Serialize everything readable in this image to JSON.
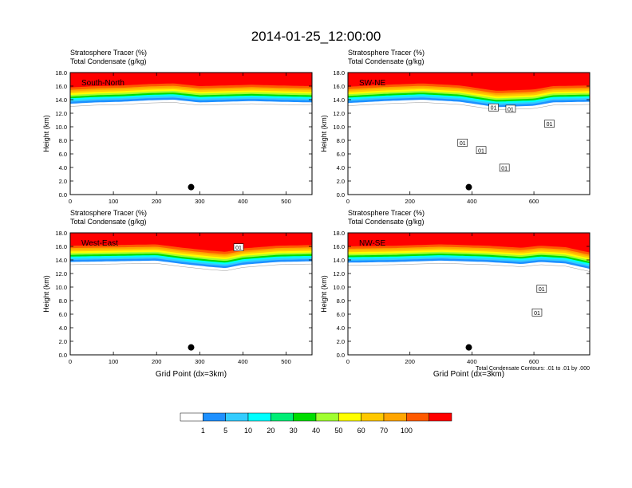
{
  "figure_title": "2014-01-25_12:00:00",
  "colorbar": {
    "labels": [
      "1",
      "5",
      "10",
      "20",
      "30",
      "40",
      "50",
      "60",
      "70",
      "100"
    ],
    "colors": [
      "#ffffff",
      "#1e90ff",
      "#33ccff",
      "#00ffff",
      "#00ee76",
      "#00dd00",
      "#a0ff30",
      "#ffff00",
      "#ffc800",
      "#ffa500",
      "#ff5a00",
      "#ff0000"
    ]
  },
  "chart_data": [
    {
      "type": "heatmap",
      "label": "South-North",
      "title_line1": "Stratosphere Tracer   (%)",
      "title_line2": "Total Condensate   (g/kg)",
      "ylabel": "Height (km)",
      "xlabel": "",
      "xlim": [
        0,
        560
      ],
      "ylim": [
        0,
        18
      ],
      "xticks": [
        "0",
        "100",
        "200",
        "300",
        "400",
        "500"
      ],
      "yticks": [
        "0.0",
        "2.0",
        "4.0",
        "6.0",
        "8.0",
        "10.0",
        "12.0",
        "14.0",
        "16.0",
        "18.0"
      ],
      "marker": {
        "x": 280,
        "y": 1.1
      },
      "tropopause": [
        [
          0,
          14.3
        ],
        [
          60,
          14.5
        ],
        [
          120,
          14.6
        ],
        [
          180,
          14.8
        ],
        [
          240,
          14.9
        ],
        [
          300,
          14.5
        ],
        [
          360,
          14.6
        ],
        [
          420,
          14.7
        ],
        [
          480,
          14.6
        ],
        [
          560,
          14.5
        ]
      ],
      "contour_labels": [],
      "footnote": ""
    },
    {
      "type": "heatmap",
      "label": "SW-NE",
      "title_line1": "Stratosphere Tracer   (%)",
      "title_line2": "Total Condensate   (g/kg)",
      "ylabel": "Height (km)",
      "xlabel": "",
      "xlim": [
        0,
        780
      ],
      "ylim": [
        0,
        18
      ],
      "xticks": [
        "0",
        "200",
        "400",
        "600"
      ],
      "yticks": [
        "0.0",
        "2.0",
        "4.0",
        "6.0",
        "8.0",
        "10.0",
        "12.0",
        "14.0",
        "16.0",
        "18.0"
      ],
      "marker": {
        "x": 390,
        "y": 1.1
      },
      "tropopause": [
        [
          0,
          14.4
        ],
        [
          120,
          14.7
        ],
        [
          240,
          14.9
        ],
        [
          360,
          14.6
        ],
        [
          420,
          14.2
        ],
        [
          480,
          13.8
        ],
        [
          540,
          13.9
        ],
        [
          600,
          14.0
        ],
        [
          660,
          14.5
        ],
        [
          780,
          14.6
        ]
      ],
      "contour_labels": [
        {
          "text": "01",
          "x": 470,
          "y": 12.8
        },
        {
          "text": "01",
          "x": 525,
          "y": 12.6
        },
        {
          "text": "01",
          "x": 650,
          "y": 10.4
        },
        {
          "text": "01",
          "x": 370,
          "y": 7.6
        },
        {
          "text": "01",
          "x": 430,
          "y": 6.5
        },
        {
          "text": "01",
          "x": 505,
          "y": 3.9
        }
      ],
      "footnote": ""
    },
    {
      "type": "heatmap",
      "label": "West-East",
      "title_line1": "Stratosphere Tracer   (%)",
      "title_line2": "Total Condensate   (g/kg)",
      "ylabel": "Height (km)",
      "xlabel": "Grid Point (dx=3km)",
      "xlim": [
        0,
        560
      ],
      "ylim": [
        0,
        18
      ],
      "xticks": [
        "0",
        "100",
        "200",
        "300",
        "400",
        "500"
      ],
      "yticks": [
        "0.0",
        "2.0",
        "4.0",
        "6.0",
        "8.0",
        "10.0",
        "12.0",
        "14.0",
        "16.0",
        "18.0"
      ],
      "marker": {
        "x": 280,
        "y": 1.1
      },
      "tropopause": [
        [
          0,
          14.6
        ],
        [
          100,
          14.7
        ],
        [
          200,
          14.8
        ],
        [
          260,
          14.3
        ],
        [
          320,
          13.9
        ],
        [
          360,
          13.7
        ],
        [
          400,
          14.2
        ],
        [
          480,
          14.6
        ],
        [
          560,
          14.7
        ]
      ],
      "contour_labels": [
        {
          "text": "01",
          "x": 390,
          "y": 15.8
        }
      ],
      "footnote": ""
    },
    {
      "type": "heatmap",
      "label": "NW-SE",
      "title_line1": "Stratosphere Tracer   (%)",
      "title_line2": "Total Condensate   (g/kg)",
      "ylabel": "Height (km)",
      "xlabel": "Grid Point (dx=3km)",
      "xlim": [
        0,
        780
      ],
      "ylim": [
        0,
        18
      ],
      "xticks": [
        "0",
        "200",
        "400",
        "600"
      ],
      "yticks": [
        "0.0",
        "2.0",
        "4.0",
        "6.0",
        "8.0",
        "10.0",
        "12.0",
        "14.0",
        "16.0",
        "18.0"
      ],
      "marker": {
        "x": 390,
        "y": 1.1
      },
      "tropopause": [
        [
          0,
          14.5
        ],
        [
          150,
          14.6
        ],
        [
          300,
          14.8
        ],
        [
          450,
          14.6
        ],
        [
          560,
          14.3
        ],
        [
          620,
          14.6
        ],
        [
          700,
          14.4
        ],
        [
          780,
          13.6
        ]
      ],
      "contour_labels": [
        {
          "text": "01",
          "x": 625,
          "y": 9.7
        },
        {
          "text": "01",
          "x": 610,
          "y": 6.2
        }
      ],
      "footnote": "Total Condensate Contours: .01 to .01 by .000"
    }
  ]
}
